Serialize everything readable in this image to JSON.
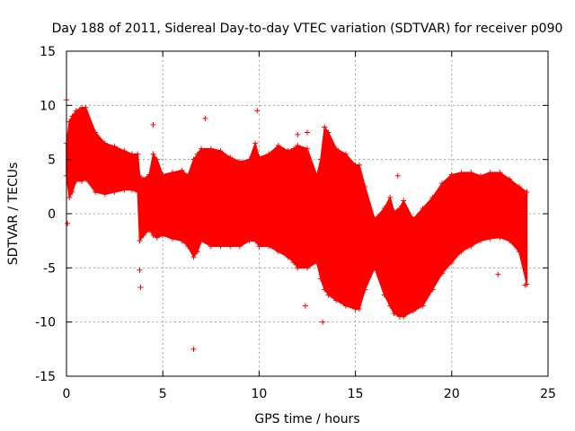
{
  "chart_data": {
    "type": "scatter",
    "title": "Day 188 of 2011, Sidereal Day-to-day VTEC variation (SDTVAR) for receiver p090",
    "xlabel": "GPS time / hours",
    "ylabel": "SDTVAR / TECUs",
    "xlim": [
      0,
      25
    ],
    "ylim": [
      -15,
      15
    ],
    "xticks": [
      0,
      5,
      10,
      15,
      20,
      25
    ],
    "yticks": [
      -15,
      -10,
      -5,
      0,
      5,
      10,
      15
    ],
    "grid": true,
    "marker": "+",
    "color": "#ff0000",
    "envelope": {
      "x": [
        0.0,
        0.15,
        0.3,
        0.5,
        0.8,
        1.0,
        1.5,
        2.0,
        2.5,
        3.0,
        3.4,
        3.7,
        3.8,
        4.0,
        4.3,
        4.5,
        4.7,
        5.0,
        5.5,
        6.0,
        6.3,
        6.6,
        6.8,
        7.0,
        7.5,
        8.0,
        8.5,
        9.0,
        9.5,
        9.8,
        10.0,
        10.5,
        11.0,
        11.5,
        11.8,
        12.0,
        12.5,
        13.0,
        13.2,
        13.4,
        13.6,
        14.0,
        14.5,
        15.0,
        15.2,
        15.5,
        16.0,
        16.5,
        16.8,
        17.0,
        17.3,
        17.5,
        18.0,
        18.5,
        19.0,
        19.5,
        20.0,
        20.5,
        21.0,
        21.5,
        22.0,
        22.5,
        23.0,
        23.5,
        23.9
      ],
      "upper": [
        6.5,
        8.5,
        9.0,
        9.5,
        9.8,
        9.8,
        7.5,
        6.5,
        6.2,
        5.8,
        5.5,
        5.5,
        3.5,
        3.2,
        3.6,
        5.5,
        5.0,
        3.6,
        3.8,
        4.0,
        3.5,
        5.0,
        5.5,
        6.0,
        6.0,
        5.8,
        5.2,
        4.8,
        5.0,
        6.5,
        5.2,
        5.5,
        6.3,
        5.8,
        6.0,
        6.3,
        6.0,
        3.5,
        5.0,
        8.0,
        7.5,
        6.0,
        5.5,
        4.5,
        4.5,
        2.5,
        -0.5,
        0.5,
        1.5,
        0.2,
        0.5,
        1.2,
        -0.5,
        0.5,
        1.5,
        2.8,
        3.6,
        3.8,
        3.8,
        3.5,
        3.8,
        3.8,
        3.2,
        2.5,
        2.0
      ],
      "lower": [
        3.5,
        1.5,
        2.0,
        3.0,
        3.0,
        3.2,
        2.0,
        1.8,
        2.0,
        2.2,
        2.2,
        2.0,
        -2.5,
        -2.0,
        -1.5,
        -2.0,
        -2.2,
        -2.0,
        -2.3,
        -2.5,
        -3.0,
        -4.0,
        -3.5,
        -2.5,
        -3.0,
        -3.0,
        -3.0,
        -3.0,
        -2.5,
        -2.5,
        -3.0,
        -3.0,
        -3.5,
        -4.0,
        -4.5,
        -5.0,
        -5.0,
        -4.5,
        -6.0,
        -7.0,
        -7.5,
        -8.0,
        -8.5,
        -8.8,
        -8.8,
        -7.0,
        -5.0,
        -7.5,
        -8.5,
        -9.2,
        -9.5,
        -9.5,
        -9.0,
        -8.5,
        -7.0,
        -5.5,
        -4.5,
        -3.5,
        -3.0,
        -2.5,
        -2.3,
        -2.2,
        -2.5,
        -3.5,
        -6.5
      ]
    },
    "outliers": [
      {
        "x": 0.0,
        "y": 10.5
      },
      {
        "x": 0.05,
        "y": -0.9
      },
      {
        "x": 3.8,
        "y": -5.2
      },
      {
        "x": 3.85,
        "y": -6.8
      },
      {
        "x": 4.5,
        "y": 8.2
      },
      {
        "x": 6.6,
        "y": -12.5
      },
      {
        "x": 7.2,
        "y": 8.8
      },
      {
        "x": 9.9,
        "y": 9.5
      },
      {
        "x": 12.0,
        "y": 7.3
      },
      {
        "x": 12.4,
        "y": -8.5
      },
      {
        "x": 12.5,
        "y": 7.5
      },
      {
        "x": 13.3,
        "y": -10.0
      },
      {
        "x": 17.2,
        "y": 3.5
      },
      {
        "x": 15.0,
        "y": -8.7
      },
      {
        "x": 22.4,
        "y": -5.6
      },
      {
        "x": 23.8,
        "y": -6.6
      }
    ]
  }
}
